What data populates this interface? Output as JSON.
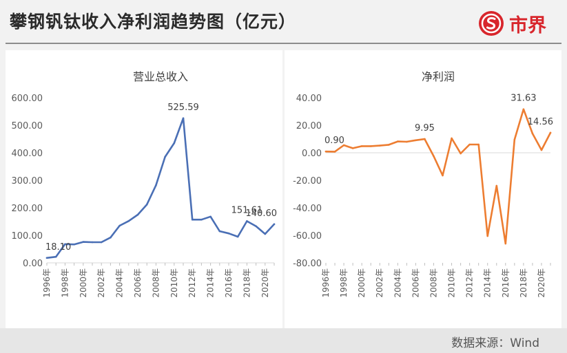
{
  "header": {
    "title": "攀钢钒钛收入净利润趋势图（亿元）",
    "brand": "市界"
  },
  "footer": {
    "source": "数据来源：Wind"
  },
  "colors": {
    "revenue_line": "#4a6fb5",
    "profit_line": "#ed7d31",
    "brand_red": "#d8262c"
  },
  "chart_data": [
    {
      "type": "line",
      "title": "营业总收入",
      "x": [
        1996,
        1997,
        1998,
        1999,
        2000,
        2001,
        2002,
        2003,
        2004,
        2005,
        2006,
        2007,
        2008,
        2009,
        2010,
        2011,
        2012,
        2013,
        2014,
        2015,
        2016,
        2017,
        2018,
        2019,
        2020,
        2021
      ],
      "x_tick_labels": [
        "1996年",
        "1998年",
        "2000年",
        "2002年",
        "2004年",
        "2006年",
        "2008年",
        "2010年",
        "2012年",
        "2014年",
        "2016年",
        "2018年",
        "2020年"
      ],
      "series": [
        {
          "values": [
            18.1,
            22,
            68,
            67,
            76,
            75,
            75,
            92,
            135,
            152,
            175,
            212,
            282,
            385,
            435,
            525.59,
            157,
            157,
            168,
            115,
            107,
            95,
            151.61,
            133,
            105,
            140.6
          ]
        }
      ],
      "ylim": [
        0,
        600
      ],
      "y_ticks": [
        "0.00",
        "100.00",
        "200.00",
        "300.00",
        "400.00",
        "500.00",
        "600.00"
      ],
      "annotations": [
        {
          "x": 1996,
          "text": "18.10"
        },
        {
          "x": 2011,
          "text": "525.59"
        },
        {
          "x": 2018,
          "text": "151.61"
        },
        {
          "x": 2021,
          "text": "140.60"
        }
      ],
      "grid": false
    },
    {
      "type": "line",
      "title": "净利润",
      "x": [
        1996,
        1997,
        1998,
        1999,
        2000,
        2001,
        2002,
        2003,
        2004,
        2005,
        2006,
        2007,
        2008,
        2009,
        2010,
        2011,
        2012,
        2013,
        2014,
        2015,
        2016,
        2017,
        2018,
        2019,
        2020,
        2021
      ],
      "x_tick_labels": [
        "1996年",
        "1998年",
        "2000年",
        "2002年",
        "2004年",
        "2006年",
        "2008年",
        "2010年",
        "2012年",
        "2014年",
        "2016年",
        "2018年",
        "2020年"
      ],
      "series": [
        {
          "values": [
            0.9,
            0.8,
            5.5,
            3.3,
            4.8,
            4.8,
            5.2,
            5.8,
            8.2,
            8.0,
            9.1,
            9.95,
            -2.5,
            -16.5,
            10.5,
            -0.5,
            6.0,
            6.0,
            -60.5,
            -24.0,
            -66.0,
            9.5,
            31.63,
            14.0,
            2.0,
            14.56
          ]
        }
      ],
      "ylim": [
        -80,
        40
      ],
      "y_ticks": [
        "-80.00",
        "-60.00",
        "-40.00",
        "-20.00",
        "0.00",
        "20.00",
        "40.00"
      ],
      "annotations": [
        {
          "x": 1996,
          "text": "0.90"
        },
        {
          "x": 2007,
          "text": "9.95"
        },
        {
          "x": 2018,
          "text": "31.63"
        },
        {
          "x": 2021,
          "text": "14.56"
        }
      ],
      "grid": false
    }
  ]
}
